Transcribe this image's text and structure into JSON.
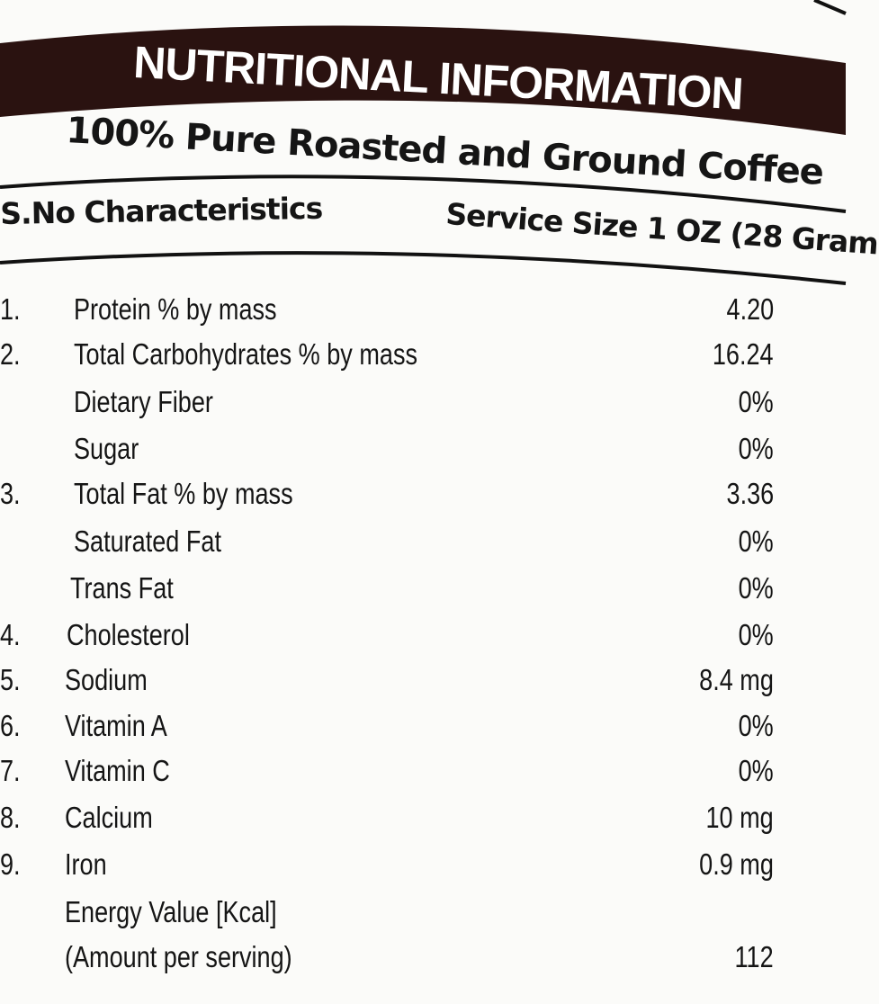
{
  "header": {
    "title": "NUTRITIONAL INFORMATION",
    "subtitle": "100% Pure Roasted and Ground Coffee",
    "column_left": "S.No Characteristics",
    "column_right": "Service Size 1 OZ (28 Gram"
  },
  "colors": {
    "banner": "#2a1210",
    "text": "#151515"
  },
  "rows": [
    {
      "num": "1.",
      "label": "Protein  % by mass",
      "value": "4.20"
    },
    {
      "num": "2.",
      "label": "Total Carbohydrates % by mass",
      "value": "16.24"
    },
    {
      "num": "",
      "label": "Dietary Fiber",
      "value": "0%"
    },
    {
      "num": "",
      "label": "Sugar",
      "value": "0%"
    },
    {
      "num": "3.",
      "label": "Total Fat % by mass",
      "value": "3.36"
    },
    {
      "num": "",
      "label": "Saturated Fat",
      "value": "0%"
    },
    {
      "num": "",
      "label": "Trans Fat",
      "value": "0%"
    },
    {
      "num": "4.",
      "label": "Cholesterol",
      "value": "0%"
    },
    {
      "num": "5.",
      "label": "Sodium",
      "value": "8.4 mg"
    },
    {
      "num": "6.",
      "label": "Vitamin A",
      "value": "0%"
    },
    {
      "num": "7.",
      "label": "Vitamin C",
      "value": "0%"
    },
    {
      "num": "8.",
      "label": "Calcium",
      "value": "10 mg"
    },
    {
      "num": "9.",
      "label": "Iron",
      "value": "0.9 mg"
    },
    {
      "num": "",
      "label": "Energy Value [Kcal]",
      "value": ""
    },
    {
      "num": "",
      "label": "(Amount per serving)",
      "value": "112"
    }
  ]
}
